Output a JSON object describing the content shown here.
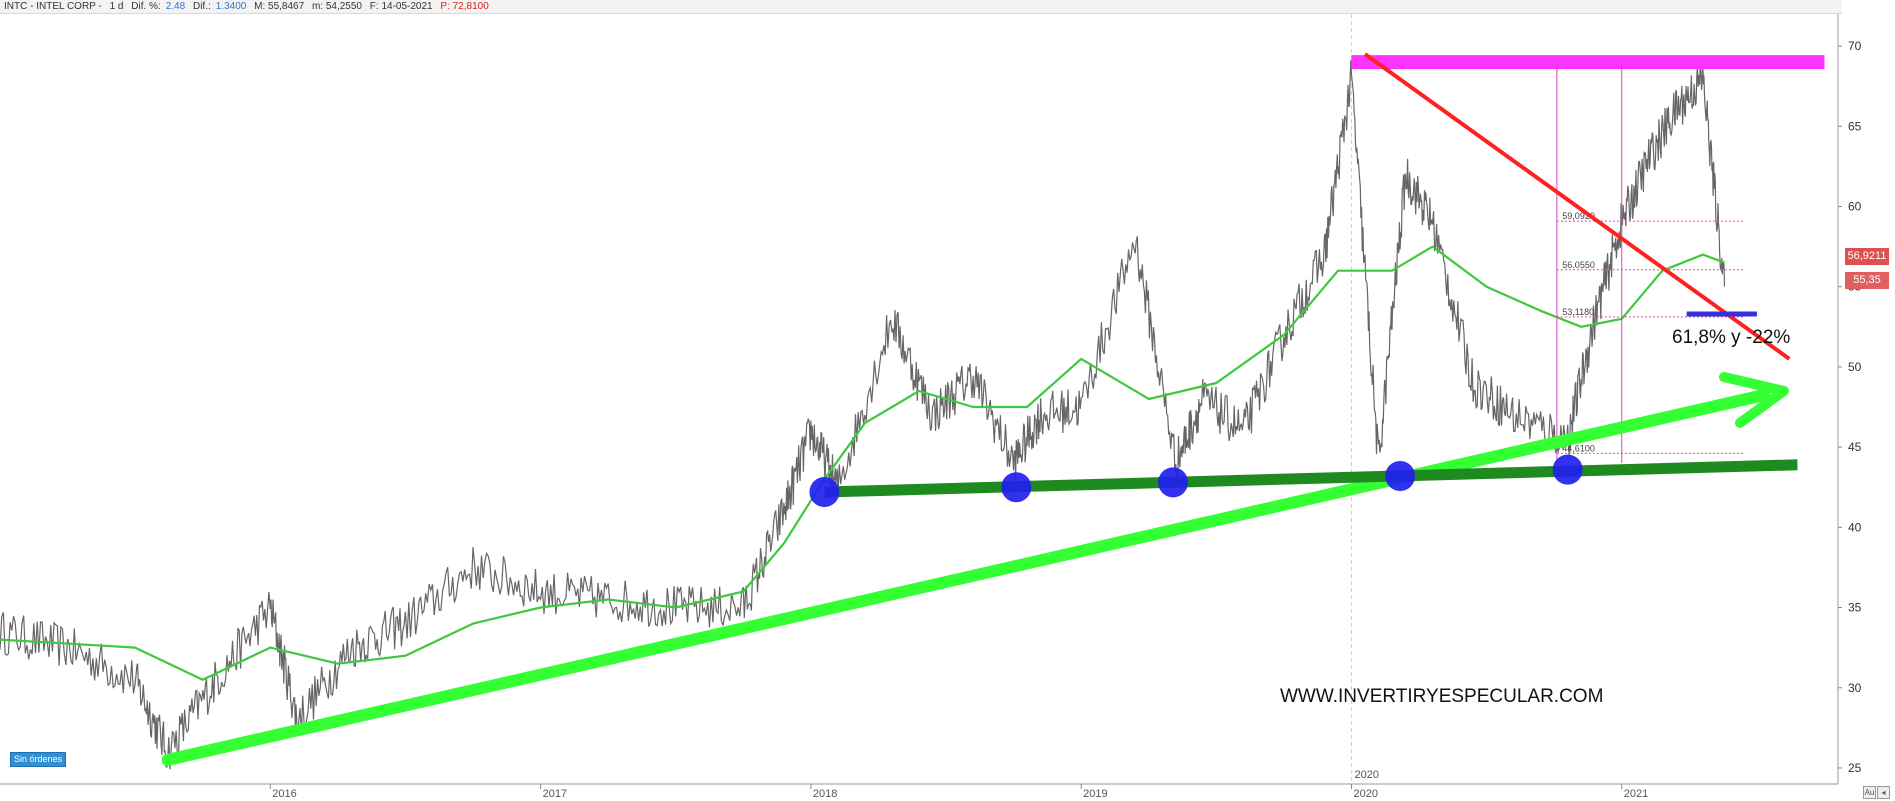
{
  "header": {
    "symbol": "INTC - INTEL CORP -",
    "period": "1 d",
    "dif_pct_label": "Dif. %:",
    "dif_pct_value": "2.48",
    "dif_label": "Dif.:",
    "dif_value": "1.3400",
    "max": "M: 55,8467",
    "min": "m: 54,2550",
    "date": "F: 14-05-2021",
    "price": "P: 72,8100"
  },
  "orders_badge": "Sin órdenes",
  "price_tags": [
    {
      "label": "56,9211",
      "color": "#e05050"
    },
    {
      "label": "55,35",
      "color": "#e06060"
    }
  ],
  "corner_buttons": [
    "Au",
    "◂"
  ],
  "chart_data": {
    "type": "line",
    "y_axis": {
      "side": "right",
      "min": 24,
      "max": 72,
      "ticks": [
        25,
        30,
        35,
        40,
        45,
        50,
        55,
        60,
        65,
        70
      ]
    },
    "x_axis": {
      "labels": [
        "2016",
        "2017",
        "2018",
        "2019",
        "2020",
        "2021"
      ],
      "top_label": "2020"
    },
    "price_series": {
      "name": "",
      "color": "#666666",
      "x": [
        2015.0,
        2015.25,
        2015.5,
        2015.62,
        2015.8,
        2016.0,
        2016.1,
        2016.3,
        2016.5,
        2016.75,
        2017.0,
        2017.25,
        2017.5,
        2017.75,
        2017.9,
        2018.0,
        2018.1,
        2018.3,
        2018.45,
        2018.6,
        2018.75,
        2018.85,
        2019.0,
        2019.2,
        2019.35,
        2019.45,
        2019.6,
        2019.75,
        2019.9,
        2020.0,
        2020.1,
        2020.2,
        2020.3,
        2020.45,
        2020.6,
        2020.8,
        2020.9,
        2021.0,
        2021.1,
        2021.2,
        2021.3,
        2021.38
      ],
      "y": [
        33.5,
        32.5,
        30.5,
        26.0,
        30.5,
        35.0,
        28.0,
        32.5,
        34.0,
        37.5,
        36.0,
        35.5,
        35.0,
        35.0,
        41.0,
        46.0,
        42.5,
        53.0,
        47.0,
        49.5,
        44.0,
        47.0,
        47.5,
        58.0,
        44.0,
        48.0,
        46.0,
        52.0,
        57.0,
        68.0,
        44.0,
        62.0,
        59.0,
        49.0,
        47.0,
        45.5,
        53.0,
        59.0,
        63.0,
        66.0,
        68.0,
        55.0
      ]
    },
    "moving_average": {
      "name": "",
      "color": "#3ec83e",
      "x": [
        2015.0,
        2015.5,
        2015.75,
        2016.0,
        2016.25,
        2016.5,
        2016.75,
        2017.0,
        2017.25,
        2017.5,
        2017.75,
        2017.9,
        2018.05,
        2018.2,
        2018.4,
        2018.6,
        2018.8,
        2019.0,
        2019.25,
        2019.5,
        2019.75,
        2019.95,
        2020.15,
        2020.3,
        2020.5,
        2020.7,
        2020.85,
        2021.0,
        2021.15,
        2021.3,
        2021.38
      ],
      "y": [
        33.0,
        32.5,
        30.5,
        32.5,
        31.5,
        32.0,
        34.0,
        35.0,
        35.5,
        35.0,
        36.0,
        39.0,
        43.0,
        46.5,
        48.5,
        47.5,
        47.5,
        50.5,
        48.0,
        49.0,
        52.0,
        56.0,
        56.0,
        57.5,
        55.0,
        53.5,
        52.5,
        53.0,
        56.0,
        57.0,
        56.5
      ]
    },
    "annotations": {
      "resistance": {
        "y": 69.0,
        "x": [
          2020.0,
          2021.75
        ],
        "color": "#ff33ff"
      },
      "support": {
        "x": [
          2018.05,
          2021.65
        ],
        "y": [
          42.2,
          43.9
        ],
        "color": "#1f8a1f"
      },
      "uptrend_arrow": {
        "x": [
          2015.62,
          2021.6
        ],
        "y": [
          25.5,
          48.5
        ],
        "color": "#33ff33"
      },
      "downtrend": {
        "x": [
          2020.05,
          2021.62
        ],
        "y": [
          69.5,
          50.5
        ],
        "color": "#ff2020"
      },
      "target_bar": {
        "y": 53.3,
        "x": [
          2021.24,
          2021.5
        ],
        "color": "#3333dd"
      },
      "vertical_markers": [
        2020.76,
        2021.0
      ],
      "fib_levels": [
        {
          "label": "59,0920",
          "y": 59.092
        },
        {
          "label": "56.0550",
          "y": 56.055
        },
        {
          "label": "53,1180",
          "y": 53.118
        },
        {
          "label": "44,6100",
          "y": 44.61
        }
      ],
      "support_touches": [
        {
          "x": 2018.05,
          "y": 42.2
        },
        {
          "x": 2018.76,
          "y": 42.5
        },
        {
          "x": 2019.34,
          "y": 42.8
        },
        {
          "x": 2020.18,
          "y": 43.2
        },
        {
          "x": 2020.8,
          "y": 43.6
        }
      ],
      "ratio_label": "61,8% y -22%",
      "watermark": "WWW.INVERTIRYESPECULAR.COM"
    }
  }
}
